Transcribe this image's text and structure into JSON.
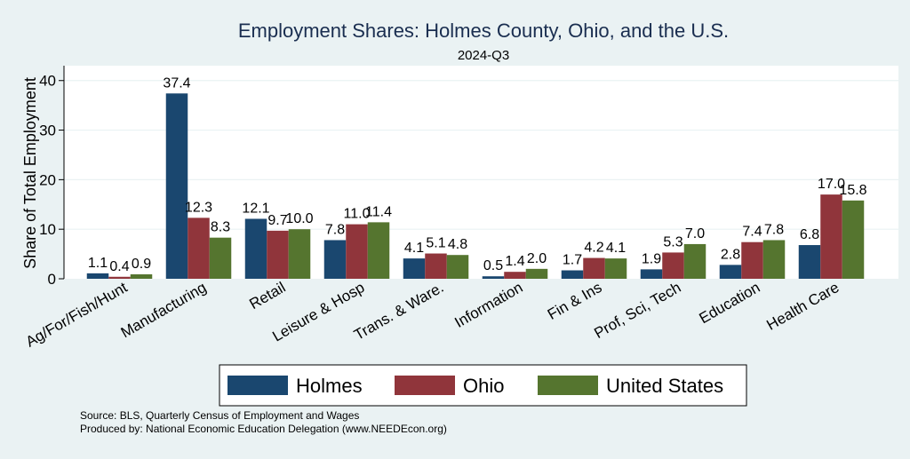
{
  "chart_data": {
    "type": "bar",
    "title": "Employment Shares: Holmes County, Ohio, and the U.S.",
    "subtitle": "2024-Q3",
    "ylabel": "Share of Total Employment",
    "xlabel": "",
    "ylim": [
      0,
      43
    ],
    "yticks": [
      0,
      10,
      20,
      30,
      40
    ],
    "grid": true,
    "legend_position": "bottom",
    "categories": [
      "Ag/For/Fish/Hunt",
      "Manufacturing",
      "Retail",
      "Leisure & Hosp",
      "Trans. & Ware.",
      "Information",
      "Fin & Ins",
      "Prof, Sci, Tech",
      "Education",
      "Health Care"
    ],
    "series": [
      {
        "name": "Holmes",
        "color": "#1a476f",
        "values": [
          1.1,
          37.4,
          12.1,
          7.8,
          4.1,
          0.5,
          1.7,
          1.9,
          2.8,
          6.8
        ],
        "labels": [
          "1.1",
          "37.4",
          "12.1",
          "7.8",
          "4.1",
          "0.5",
          "1.7",
          "1.9",
          "2.8",
          "6.8"
        ]
      },
      {
        "name": "Ohio",
        "color": "#90353b",
        "values": [
          0.4,
          12.3,
          9.7,
          11.0,
          5.1,
          1.4,
          4.2,
          5.3,
          7.4,
          17.0
        ],
        "labels": [
          "0.4",
          "12.3",
          "9.7",
          "11.0",
          "5.1",
          "1.4",
          "4.2",
          "5.3",
          "7.4",
          "17.0"
        ]
      },
      {
        "name": "United States",
        "color": "#55752f",
        "values": [
          0.9,
          8.3,
          10.0,
          11.4,
          4.8,
          2.0,
          4.1,
          7.0,
          7.8,
          15.8
        ],
        "labels": [
          "0.9",
          "8.3",
          "10.0",
          "11.4",
          "4.8",
          "2.0",
          "4.1",
          "7.0",
          "7.8",
          "15.8"
        ]
      }
    ]
  },
  "notes": {
    "source": "Source: BLS, Quarterly Census of Employment and Wages",
    "produced_by": "Produced by: National Economic Education Delegation (www.NEEDEcon.org)"
  }
}
